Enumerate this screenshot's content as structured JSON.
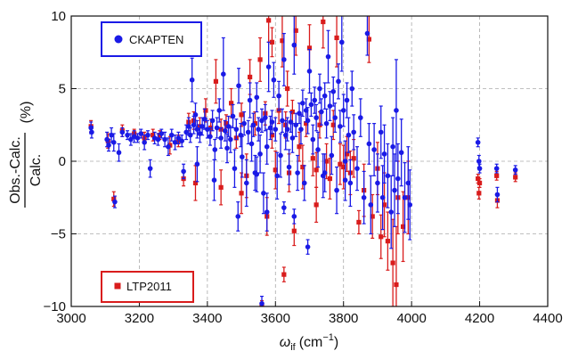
{
  "chart_data": {
    "type": "scatter",
    "title": "",
    "xlabel_symbol": "ω",
    "xlabel_sub": "if",
    "xlabel_unit": "(cm",
    "xlabel_exp": "−1",
    "xlabel_close": ")",
    "ylabel_num": "Obs.-Calc.",
    "ylabel_den": "Calc.",
    "ylabel_unit": "(%)",
    "xlim": [
      3000,
      4400
    ],
    "ylim": [
      -10,
      10
    ],
    "xticks": [
      "3000",
      "3200",
      "3400",
      "3600",
      "3800",
      "4000",
      "4200",
      "4400"
    ],
    "yticks": [
      "−10",
      "−5",
      "0",
      "5",
      "10"
    ],
    "grid": true,
    "legend_entries": [
      {
        "name": "CKAPTEN",
        "placement": "top-left"
      },
      {
        "name": "LTP2011",
        "placement": "bottom-left"
      }
    ],
    "colors": {
      "CKAPTEN": "#1a1ae6",
      "LTP2011": "#d91c1c"
    },
    "series": [
      {
        "name": "CKAPTEN",
        "marker": "circle",
        "points": [
          [
            3058,
            2.3,
            0.4
          ],
          [
            3060,
            2.0,
            0.4
          ],
          [
            3105,
            1.5,
            0.5
          ],
          [
            3110,
            1.1,
            0.4
          ],
          [
            3118,
            1.8,
            0.5
          ],
          [
            3125,
            1.3,
            0.6
          ],
          [
            3128,
            -2.8,
            0.4
          ],
          [
            3140,
            0.6,
            0.6
          ],
          [
            3150,
            2.0,
            0.3
          ],
          [
            3165,
            1.8,
            0.3
          ],
          [
            3175,
            1.5,
            0.4
          ],
          [
            3185,
            1.7,
            0.4
          ],
          [
            3195,
            1.6,
            0.3
          ],
          [
            3205,
            1.9,
            0.3
          ],
          [
            3215,
            1.3,
            0.5
          ],
          [
            3225,
            1.8,
            0.3
          ],
          [
            3232,
            -0.5,
            0.6
          ],
          [
            3245,
            1.6,
            0.4
          ],
          [
            3255,
            1.5,
            0.4
          ],
          [
            3265,
            1.9,
            0.3
          ],
          [
            3275,
            1.5,
            0.5
          ],
          [
            3285,
            1.0,
            0.6
          ],
          [
            3295,
            1.8,
            0.4
          ],
          [
            3305,
            1.3,
            0.5
          ],
          [
            3315,
            1.6,
            0.4
          ],
          [
            3325,
            1.4,
            0.4
          ],
          [
            3330,
            -0.7,
            0.5
          ],
          [
            3338,
            2.0,
            0.5
          ],
          [
            3345,
            2.4,
            0.6
          ],
          [
            3350,
            1.8,
            0.5
          ],
          [
            3355,
            5.6,
            1.5
          ],
          [
            3360,
            2.5,
            0.6
          ],
          [
            3365,
            3.2,
            0.8
          ],
          [
            3370,
            2.2,
            0.6
          ],
          [
            3378,
            1.9,
            0.6
          ],
          [
            3385,
            2.4,
            0.6
          ],
          [
            3392,
            2.9,
            0.7
          ],
          [
            3400,
            2.2,
            0.6
          ],
          [
            3408,
            1.7,
            0.6
          ],
          [
            3415,
            2.8,
            0.7
          ],
          [
            3422,
            0.8,
            0.7
          ],
          [
            3428,
            2.3,
            0.7
          ],
          [
            3435,
            3.5,
            0.8
          ],
          [
            3440,
            1.6,
            0.7
          ],
          [
            3447,
            6.0,
            2.5
          ],
          [
            3452,
            2.1,
            0.7
          ],
          [
            3458,
            0.9,
            1.0
          ],
          [
            3462,
            2.4,
            0.7
          ],
          [
            3468,
            1.5,
            0.9
          ],
          [
            3475,
            3.1,
            0.8
          ],
          [
            3480,
            -0.5,
            1.3
          ],
          [
            3485,
            2.2,
            0.7
          ],
          [
            3492,
            5.2,
            1.2
          ],
          [
            3498,
            1.8,
            0.8
          ],
          [
            3502,
            0.3,
            1.4
          ],
          [
            3508,
            2.6,
            0.8
          ],
          [
            3515,
            -1.5,
            1.6
          ],
          [
            3520,
            2.0,
            0.8
          ],
          [
            3525,
            4.2,
            1.2
          ],
          [
            3530,
            1.2,
            1.2
          ],
          [
            3535,
            2.5,
            0.8
          ],
          [
            3540,
            -0.8,
            1.2
          ],
          [
            3545,
            4.4,
            1.0
          ],
          [
            3550,
            2.2,
            0.8
          ],
          [
            3555,
            0.5,
            1.3
          ],
          [
            3560,
            2.8,
            0.8
          ],
          [
            3565,
            -2.2,
            1.4
          ],
          [
            3570,
            3.0,
            0.9
          ],
          [
            3575,
            1.0,
            1.2
          ],
          [
            3580,
            6.5,
            1.7
          ],
          [
            3585,
            2.3,
            0.8
          ],
          [
            3590,
            2.7,
            0.8
          ],
          [
            3595,
            5.6,
            1.2
          ],
          [
            3600,
            2.2,
            0.8
          ],
          [
            3605,
            -1.0,
            1.6
          ],
          [
            3610,
            4.5,
            1.0
          ],
          [
            3615,
            0.4,
            1.5
          ],
          [
            3620,
            2.8,
            0.8
          ],
          [
            3625,
            7.0,
            1.8
          ],
          [
            3630,
            1.8,
            1.0
          ],
          [
            3635,
            2.2,
            0.8
          ],
          [
            3640,
            -0.4,
            1.2
          ],
          [
            3645,
            2.7,
            0.7
          ],
          [
            3650,
            1.6,
            1.0
          ],
          [
            3655,
            8.0,
            2.0
          ],
          [
            3660,
            2.5,
            0.8
          ],
          [
            3665,
            -0.8,
            1.2
          ],
          [
            3670,
            3.3,
            0.7
          ],
          [
            3675,
            2.2,
            1.0
          ],
          [
            3680,
            4.0,
            0.9
          ],
          [
            3685,
            -1.5,
            1.2
          ],
          [
            3690,
            3.5,
            0.8
          ],
          [
            3695,
            2.8,
            0.9
          ],
          [
            3700,
            6.2,
            1.5
          ],
          [
            3705,
            3.9,
            0.8
          ],
          [
            3710,
            1.5,
            1.0
          ],
          [
            3715,
            4.2,
            0.9
          ],
          [
            3720,
            3.0,
            0.9
          ],
          [
            3725,
            0.8,
            1.2
          ],
          [
            3730,
            5.0,
            1.0
          ],
          [
            3735,
            3.4,
            0.9
          ],
          [
            3740,
            -1.0,
            1.5
          ],
          [
            3745,
            4.5,
            0.9
          ],
          [
            3750,
            2.6,
            1.0
          ],
          [
            3755,
            7.2,
            1.8
          ],
          [
            3760,
            3.8,
            1.0
          ],
          [
            3765,
            0.4,
            1.3
          ],
          [
            3770,
            4.8,
            1.0
          ],
          [
            3775,
            3.0,
            1.0
          ],
          [
            3780,
            -2.0,
            1.6
          ],
          [
            3785,
            5.5,
            1.2
          ],
          [
            3790,
            2.4,
            1.1
          ],
          [
            3795,
            8.2,
            2.0
          ],
          [
            3800,
            3.5,
            1.1
          ],
          [
            3805,
            0.0,
            1.4
          ],
          [
            3810,
            4.2,
            1.2
          ],
          [
            3815,
            1.8,
            1.2
          ],
          [
            3820,
            -1.5,
            1.6
          ],
          [
            3825,
            5.0,
            1.2
          ],
          [
            3830,
            2.0,
            1.2
          ],
          [
            3840,
            -0.5,
            1.5
          ],
          [
            3850,
            3.0,
            1.3
          ],
          [
            3860,
            -2.5,
            1.8
          ],
          [
            3870,
            8.8,
            1.5
          ],
          [
            3875,
            1.2,
            1.4
          ],
          [
            3880,
            -3.0,
            2.0
          ],
          [
            3890,
            0.8,
            1.8
          ],
          [
            3900,
            -1.5,
            2.0
          ],
          [
            3910,
            2.0,
            1.8
          ],
          [
            3915,
            -2.5,
            2.2
          ],
          [
            3920,
            0.5,
            2.0
          ],
          [
            3930,
            -1.0,
            2.2
          ],
          [
            3940,
            -3.5,
            2.5
          ],
          [
            3945,
            1.0,
            2.0
          ],
          [
            3950,
            -2.0,
            2.5
          ],
          [
            3955,
            3.5,
            3.5
          ],
          [
            3960,
            -1.2,
            2.4
          ],
          [
            3970,
            0.6,
            2.3
          ],
          [
            3980,
            -2.5,
            2.4
          ],
          [
            3990,
            -1.5,
            2.5
          ],
          [
            3995,
            -3.0,
            2.4
          ],
          [
            3370,
            -0.2,
            1.2
          ],
          [
            3420,
            -1.3,
            1.4
          ],
          [
            3490,
            -3.8,
            1.0
          ],
          [
            3545,
            -0.9,
            1.2
          ],
          [
            3575,
            -3.5,
            1.3
          ],
          [
            3625,
            -3.2,
            0.4
          ],
          [
            3655,
            -3.8,
            0.5
          ],
          [
            3695,
            -5.9,
            0.5
          ],
          [
            3745,
            -0.8,
            1.3
          ],
          [
            3805,
            -1.3,
            1.4
          ],
          [
            3560,
            -9.8,
            0.5
          ],
          [
            4195,
            1.3,
            0.3
          ],
          [
            4198,
            0.0,
            0.4
          ],
          [
            4200,
            -0.5,
            0.3
          ],
          [
            4250,
            -0.5,
            0.3
          ],
          [
            4252,
            -2.3,
            0.5
          ],
          [
            4305,
            -0.6,
            0.3
          ]
        ]
      },
      {
        "name": "LTP2011",
        "marker": "square",
        "points": [
          [
            3058,
            2.4,
            0.4
          ],
          [
            3108,
            1.4,
            0.5
          ],
          [
            3125,
            -2.6,
            0.5
          ],
          [
            3150,
            2.1,
            0.4
          ],
          [
            3185,
            1.9,
            0.3
          ],
          [
            3215,
            1.6,
            0.4
          ],
          [
            3240,
            1.8,
            0.4
          ],
          [
            3260,
            1.8,
            0.3
          ],
          [
            3290,
            1.1,
            0.6
          ],
          [
            3315,
            1.4,
            0.4
          ],
          [
            3330,
            -1.2,
            0.5
          ],
          [
            3345,
            2.7,
            0.6
          ],
          [
            3360,
            2.8,
            0.6
          ],
          [
            3378,
            2.4,
            0.6
          ],
          [
            3395,
            3.5,
            0.8
          ],
          [
            3410,
            2.3,
            0.6
          ],
          [
            3425,
            5.5,
            1.5
          ],
          [
            3440,
            2.2,
            0.7
          ],
          [
            3455,
            2.6,
            0.6
          ],
          [
            3470,
            4.0,
            1.0
          ],
          [
            3485,
            1.6,
            0.7
          ],
          [
            3500,
            3.2,
            0.8
          ],
          [
            3515,
            -1.0,
            1.5
          ],
          [
            3525,
            5.8,
            1.2
          ],
          [
            3540,
            2.6,
            0.8
          ],
          [
            3555,
            7.0,
            1.5
          ],
          [
            3570,
            3.3,
            0.8
          ],
          [
            3580,
            9.7,
            1.5
          ],
          [
            3590,
            1.8,
            0.9
          ],
          [
            3600,
            -0.6,
            1.3
          ],
          [
            3610,
            3.5,
            0.9
          ],
          [
            3620,
            8.3,
            1.8
          ],
          [
            3630,
            2.5,
            0.9
          ],
          [
            3640,
            -0.8,
            1.3
          ],
          [
            3650,
            3.4,
            0.8
          ],
          [
            3660,
            9.0,
            1.7
          ],
          [
            3670,
            1.0,
            1.0
          ],
          [
            3680,
            -0.4,
            1.5
          ],
          [
            3690,
            2.6,
            0.9
          ],
          [
            3700,
            7.8,
            1.6
          ],
          [
            3710,
            0.2,
            1.2
          ],
          [
            3720,
            -0.6,
            1.2
          ],
          [
            3730,
            2.5,
            0.9
          ],
          [
            3740,
            9.6,
            1.8
          ],
          [
            3750,
            0.0,
            1.2
          ],
          [
            3760,
            -1.2,
            1.4
          ],
          [
            3770,
            2.5,
            1.0
          ],
          [
            3780,
            8.5,
            2.0
          ],
          [
            3790,
            -0.2,
            1.4
          ],
          [
            3800,
            -0.4,
            1.5
          ],
          [
            3810,
            0.5,
            1.2
          ],
          [
            3820,
            -0.8,
            1.5
          ],
          [
            3830,
            0.2,
            1.3
          ],
          [
            3845,
            -4.2,
            0.8
          ],
          [
            3860,
            -2.0,
            1.8
          ],
          [
            3875,
            8.4,
            1.6
          ],
          [
            3885,
            -3.8,
            1.5
          ],
          [
            3900,
            -0.5,
            1.8
          ],
          [
            3910,
            -5.2,
            1.5
          ],
          [
            3920,
            -3.0,
            2.2
          ],
          [
            3930,
            -5.5,
            2.0
          ],
          [
            3945,
            -7.0,
            3.0
          ],
          [
            3955,
            -8.5,
            4.0
          ],
          [
            3960,
            -2.5,
            2.5
          ],
          [
            3975,
            -4.5,
            2.4
          ],
          [
            3990,
            -2.5,
            2.5
          ],
          [
            3365,
            -1.5,
            1.2
          ],
          [
            3440,
            -1.8,
            1.2
          ],
          [
            3500,
            -2.2,
            1.4
          ],
          [
            3575,
            -3.8,
            1.3
          ],
          [
            3625,
            -7.8,
            0.5
          ],
          [
            3655,
            -4.8,
            1.0
          ],
          [
            3720,
            -3.0,
            1.2
          ],
          [
            3560,
            -10.0,
            0.4
          ],
          [
            3590,
            8.2,
            1.0
          ],
          [
            3635,
            5.0,
            1.2
          ],
          [
            4195,
            -1.2,
            0.3
          ],
          [
            4198,
            -2.2,
            0.4
          ],
          [
            4200,
            -1.5,
            0.3
          ],
          [
            4250,
            -1.0,
            0.3
          ],
          [
            4252,
            -2.7,
            0.5
          ],
          [
            4305,
            -1.1,
            0.3
          ]
        ]
      }
    ]
  }
}
